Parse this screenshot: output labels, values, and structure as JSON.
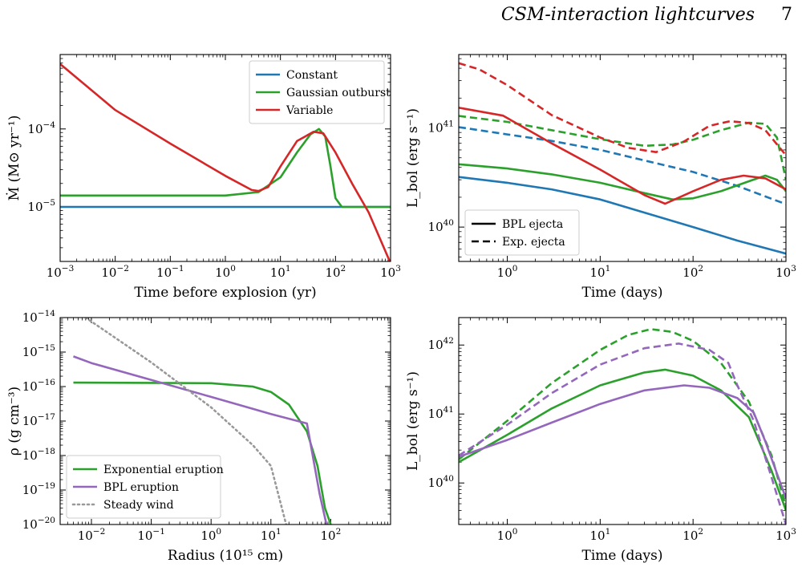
{
  "header": {
    "title": "CSM-interaction lightcurves",
    "page_number": "7"
  },
  "chart_data": [
    {
      "type": "line",
      "panel": "top-left",
      "xlabel": "Time before explosion (yr)",
      "ylabel": "Ṁ (M⊙ yr⁻¹)",
      "x_scale": "log",
      "y_scale": "log",
      "xlim": [
        0.001,
        1000
      ],
      "ylim": [
        2e-06,
        0.0009
      ],
      "x_ticks": [
        {
          "v": 0.001,
          "base": "10",
          "exp": "−3"
        },
        {
          "v": 0.01,
          "base": "10",
          "exp": "−2"
        },
        {
          "v": 0.1,
          "base": "10",
          "exp": "−1"
        },
        {
          "v": 1,
          "base": "10",
          "exp": "0"
        },
        {
          "v": 10,
          "base": "10",
          "exp": "1"
        },
        {
          "v": 100,
          "base": "10",
          "exp": "2"
        },
        {
          "v": 1000,
          "base": "10",
          "exp": "3"
        }
      ],
      "y_ticks": [
        {
          "v": 1e-05,
          "base": "10",
          "exp": "−5"
        },
        {
          "v": 0.0001,
          "base": "10",
          "exp": "−4"
        }
      ],
      "legend_position": "top-right",
      "series": [
        {
          "name": "Constant",
          "color": "#1f77b4",
          "dash": "solid",
          "points": [
            [
              0.001,
              1e-05
            ],
            [
              1000,
              1e-05
            ]
          ]
        },
        {
          "name": "Gaussian outburst",
          "color": "#2ca02c",
          "dash": "solid",
          "points": [
            [
              0.001,
              1.4e-05
            ],
            [
              1,
              1.4e-05
            ],
            [
              4,
              1.55e-05
            ],
            [
              10,
              2.4e-05
            ],
            [
              20,
              5e-05
            ],
            [
              35,
              8.5e-05
            ],
            [
              50,
              0.0001
            ],
            [
              65,
              8e-05
            ],
            [
              80,
              3.5e-05
            ],
            [
              100,
              1.3e-05
            ],
            [
              130,
              1e-05
            ],
            [
              1000,
              1e-05
            ]
          ]
        },
        {
          "name": "Variable",
          "color": "#d62728",
          "dash": "solid",
          "points": [
            [
              0.001,
              0.00068
            ],
            [
              0.01,
              0.000175
            ],
            [
              0.1,
              6.5e-05
            ],
            [
              1,
              2.5e-05
            ],
            [
              3,
              1.65e-05
            ],
            [
              4,
              1.6e-05
            ],
            [
              6,
              1.8e-05
            ],
            [
              10,
              3.3e-05
            ],
            [
              20,
              7e-05
            ],
            [
              40,
              9.2e-05
            ],
            [
              60,
              8.8e-05
            ],
            [
              100,
              5e-05
            ],
            [
              200,
              2e-05
            ],
            [
              400,
              8.5e-06
            ],
            [
              1000,
              1.9e-06
            ]
          ]
        }
      ]
    },
    {
      "type": "line",
      "panel": "top-right",
      "xlabel": "Time (days)",
      "ylabel": "L_bol (erg s⁻¹)",
      "x_scale": "log",
      "y_scale": "log",
      "xlim": [
        0.3,
        1000
      ],
      "ylim": [
        4.5e+39,
        5.5e+41
      ],
      "x_ticks": [
        {
          "v": 1,
          "base": "10",
          "exp": "0"
        },
        {
          "v": 10,
          "base": "10",
          "exp": "1"
        },
        {
          "v": 100,
          "base": "10",
          "exp": "2"
        },
        {
          "v": 1000,
          "base": "10",
          "exp": "3"
        }
      ],
      "y_ticks": [
        {
          "v": 1e+40,
          "base": "10",
          "exp": "40"
        },
        {
          "v": 1e+41,
          "base": "10",
          "exp": "41"
        }
      ],
      "legend_position": "bottom-left",
      "legend": [
        {
          "label": "BPL ejecta",
          "dash": "solid"
        },
        {
          "label": "Exp. ejecta",
          "dash": "dashed"
        }
      ],
      "series": [
        {
          "color": "#1f77b4",
          "dash": "solid",
          "points": [
            [
              0.3,
              3.2e+40
            ],
            [
              1,
              2.8e+40
            ],
            [
              3,
              2.4e+40
            ],
            [
              10,
              1.9e+40
            ],
            [
              30,
              1.4e+40
            ],
            [
              100,
              1e+40
            ],
            [
              300,
              7.3e+39
            ],
            [
              1000,
              5.4e+39
            ]
          ]
        },
        {
          "color": "#1f77b4",
          "dash": "dashed",
          "points": [
            [
              0.3,
              1.02e+41
            ],
            [
              1,
              8.6e+40
            ],
            [
              3,
              7.4e+40
            ],
            [
              10,
              6e+40
            ],
            [
              30,
              4.7e+40
            ],
            [
              100,
              3.6e+40
            ],
            [
              300,
              2.6e+40
            ],
            [
              1000,
              1.7e+40
            ]
          ]
        },
        {
          "color": "#2ca02c",
          "dash": "solid",
          "points": [
            [
              0.3,
              4.3e+40
            ],
            [
              1,
              3.9e+40
            ],
            [
              3,
              3.4e+40
            ],
            [
              10,
              2.8e+40
            ],
            [
              30,
              2.2e+40
            ],
            [
              60,
              1.9e+40
            ],
            [
              100,
              1.95e+40
            ],
            [
              200,
              2.3e+40
            ],
            [
              400,
              2.9e+40
            ],
            [
              600,
              3.3e+40
            ],
            [
              800,
              3e+40
            ],
            [
              1000,
              2.3e+40
            ]
          ]
        },
        {
          "color": "#2ca02c",
          "dash": "dashed",
          "points": [
            [
              0.3,
              1.32e+41
            ],
            [
              1,
              1.15e+41
            ],
            [
              3,
              9.5e+40
            ],
            [
              10,
              7.7e+40
            ],
            [
              30,
              6.6e+40
            ],
            [
              60,
              6.8e+40
            ],
            [
              100,
              7.6e+40
            ],
            [
              200,
              9.5e+40
            ],
            [
              400,
              1.13e+41
            ],
            [
              600,
              1.1e+41
            ],
            [
              800,
              8e+40
            ],
            [
              1000,
              3e+40
            ]
          ]
        },
        {
          "color": "#d62728",
          "dash": "solid",
          "points": [
            [
              0.3,
              1.6e+41
            ],
            [
              0.9,
              1.33e+41
            ],
            [
              3,
              7e+40
            ],
            [
              10,
              3.8e+40
            ],
            [
              30,
              2.1e+40
            ],
            [
              50,
              1.72e+40
            ],
            [
              100,
              2.3e+40
            ],
            [
              200,
              3e+40
            ],
            [
              350,
              3.3e+40
            ],
            [
              600,
              3.1e+40
            ],
            [
              1000,
              2.4e+40
            ]
          ]
        },
        {
          "color": "#d62728",
          "dash": "dashed",
          "points": [
            [
              0.3,
              4.5e+41
            ],
            [
              0.5,
              3.9e+41
            ],
            [
              1,
              2.7e+41
            ],
            [
              3,
              1.35e+41
            ],
            [
              10,
              8e+40
            ],
            [
              20,
              6.3e+40
            ],
            [
              40,
              5.7e+40
            ],
            [
              80,
              7.3e+40
            ],
            [
              150,
              1.05e+41
            ],
            [
              250,
              1.17e+41
            ],
            [
              400,
              1.12e+41
            ],
            [
              600,
              9.5e+40
            ],
            [
              1000,
              5.3e+40
            ]
          ]
        }
      ]
    },
    {
      "type": "line",
      "panel": "bottom-left",
      "xlabel": "Radius (10¹⁵ cm)",
      "ylabel": "ρ (g cm⁻³)",
      "x_scale": "log",
      "y_scale": "log",
      "xlim": [
        0.003,
        1000
      ],
      "ylim": [
        1e-20,
        1e-14
      ],
      "x_ticks": [
        {
          "v": 0.01,
          "base": "10",
          "exp": "−2"
        },
        {
          "v": 0.1,
          "base": "10",
          "exp": "−1"
        },
        {
          "v": 1,
          "base": "10",
          "exp": "0"
        },
        {
          "v": 10,
          "base": "10",
          "exp": "1"
        },
        {
          "v": 100,
          "base": "10",
          "exp": "2"
        }
      ],
      "y_ticks": [
        {
          "v": 1e-20,
          "base": "10",
          "exp": "−20"
        },
        {
          "v": 1e-19,
          "base": "10",
          "exp": "−19"
        },
        {
          "v": 1e-18,
          "base": "10",
          "exp": "−18"
        },
        {
          "v": 1e-17,
          "base": "10",
          "exp": "−17"
        },
        {
          "v": 1e-16,
          "base": "10",
          "exp": "−16"
        },
        {
          "v": 1e-15,
          "base": "10",
          "exp": "−15"
        },
        {
          "v": 1e-14,
          "base": "10",
          "exp": "−14"
        }
      ],
      "legend_position": "bottom-left",
      "series": [
        {
          "name": "Exponential eruption",
          "color": "#2ca02c",
          "dash": "solid",
          "points": [
            [
              0.005,
              1.3e-16
            ],
            [
              0.1,
              1.28e-16
            ],
            [
              1,
              1.25e-16
            ],
            [
              5,
              1e-16
            ],
            [
              10,
              7e-17
            ],
            [
              20,
              3e-17
            ],
            [
              40,
              5e-18
            ],
            [
              60,
              5e-19
            ],
            [
              80,
              3e-20
            ],
            [
              100,
              1e-20
            ]
          ]
        },
        {
          "name": "BPL eruption",
          "color": "#9467bd",
          "dash": "solid",
          "points": [
            [
              0.005,
              7.5e-16
            ],
            [
              0.01,
              4.8e-16
            ],
            [
              0.1,
              1.55e-16
            ],
            [
              1,
              5e-17
            ],
            [
              10,
              1.6e-17
            ],
            [
              40,
              8.5e-18
            ],
            [
              50,
              1e-18
            ],
            [
              65,
              8e-20
            ],
            [
              85,
              1e-20
            ]
          ]
        },
        {
          "name": "Steady wind",
          "color": "#999999",
          "dash": "dotted",
          "points": [
            [
              0.008,
              1e-14
            ],
            [
              0.1,
              5e-16
            ],
            [
              1,
              2.5e-17
            ],
            [
              5,
              2e-18
            ],
            [
              10,
              5e-19
            ],
            [
              18,
              1e-20
            ]
          ]
        }
      ]
    },
    {
      "type": "line",
      "panel": "bottom-right",
      "xlabel": "Time (days)",
      "ylabel": "L_bol (erg s⁻¹)",
      "x_scale": "log",
      "y_scale": "log",
      "xlim": [
        0.3,
        1000
      ],
      "ylim": [
        2.5e+39,
        2.5e+42
      ],
      "x_ticks": [
        {
          "v": 1,
          "base": "10",
          "exp": "0"
        },
        {
          "v": 10,
          "base": "10",
          "exp": "1"
        },
        {
          "v": 100,
          "base": "10",
          "exp": "2"
        },
        {
          "v": 1000,
          "base": "10",
          "exp": "3"
        }
      ],
      "y_ticks": [
        {
          "v": 1e+40,
          "base": "10",
          "exp": "40"
        },
        {
          "v": 1e+41,
          "base": "10",
          "exp": "41"
        },
        {
          "v": 1e+42,
          "base": "10",
          "exp": "42"
        }
      ],
      "series": [
        {
          "color": "#2ca02c",
          "dash": "solid",
          "points": [
            [
              0.3,
              2e+40
            ],
            [
              1,
              5e+40
            ],
            [
              3,
              1.2e+41
            ],
            [
              10,
              2.6e+41
            ],
            [
              30,
              4e+41
            ],
            [
              50,
              4.4e+41
            ],
            [
              100,
              3.6e+41
            ],
            [
              200,
              2.2e+41
            ],
            [
              400,
              9e+40
            ],
            [
              700,
              1.5e+40
            ],
            [
              1000,
              4e+39
            ]
          ]
        },
        {
          "color": "#2ca02c",
          "dash": "dashed",
          "points": [
            [
              0.3,
              2.2e+40
            ],
            [
              1,
              8e+40
            ],
            [
              3,
              2.8e+41
            ],
            [
              10,
              8.5e+41
            ],
            [
              20,
              1.4e+42
            ],
            [
              35,
              1.7e+42
            ],
            [
              60,
              1.55e+42
            ],
            [
              100,
              1.15e+42
            ],
            [
              200,
              5.5e+41
            ],
            [
              400,
              1.5e+41
            ],
            [
              700,
              2.5e+40
            ],
            [
              1000,
              4.5e+39
            ]
          ]
        },
        {
          "color": "#9467bd",
          "dash": "solid",
          "points": [
            [
              0.3,
              2.4e+40
            ],
            [
              1,
              4.2e+40
            ],
            [
              3,
              7.5e+40
            ],
            [
              10,
              1.4e+41
            ],
            [
              30,
              2.2e+41
            ],
            [
              80,
              2.6e+41
            ],
            [
              150,
              2.4e+41
            ],
            [
              300,
              1.7e+41
            ],
            [
              450,
              1.05e+41
            ],
            [
              600,
              4e+40
            ],
            [
              1000,
              6e+39
            ]
          ]
        },
        {
          "color": "#9467bd",
          "dash": "dashed",
          "points": [
            [
              0.3,
              2.5e+40
            ],
            [
              1,
              7e+40
            ],
            [
              3,
              2e+41
            ],
            [
              10,
              5.2e+41
            ],
            [
              30,
              9e+41
            ],
            [
              70,
              1.05e+42
            ],
            [
              150,
              8.5e+41
            ],
            [
              240,
              5.5e+41
            ],
            [
              300,
              2.6e+41
            ],
            [
              450,
              8e+40
            ],
            [
              700,
              1.2e+40
            ],
            [
              1000,
              2.5e+39
            ]
          ]
        }
      ]
    }
  ]
}
